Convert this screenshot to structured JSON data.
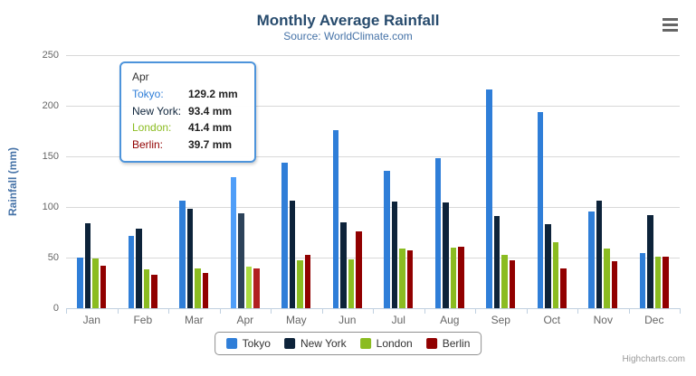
{
  "header": {
    "title": "Monthly Average Rainfall",
    "subtitle": "Source: WorldClimate.com"
  },
  "chart_data": {
    "type": "bar",
    "title": "Monthly Average Rainfall",
    "subtitle": "Source: WorldClimate.com",
    "categories": [
      "Jan",
      "Feb",
      "Mar",
      "Apr",
      "May",
      "Jun",
      "Jul",
      "Aug",
      "Sep",
      "Oct",
      "Nov",
      "Dec"
    ],
    "series": [
      {
        "name": "Tokyo",
        "color": "#2f7ed8",
        "values": [
          49.9,
          71.5,
          106.4,
          129.2,
          144.0,
          176.0,
          135.6,
          148.5,
          216.4,
          194.1,
          95.6,
          54.4
        ]
      },
      {
        "name": "New York",
        "color": "#0d233a",
        "values": [
          83.6,
          78.8,
          98.5,
          93.4,
          106.0,
          84.5,
          105.0,
          104.3,
          91.2,
          83.5,
          106.6,
          92.3
        ]
      },
      {
        "name": "London",
        "color": "#8bbc21",
        "values": [
          48.9,
          38.8,
          39.3,
          41.4,
          47.0,
          48.3,
          59.0,
          59.6,
          52.4,
          65.2,
          59.3,
          51.2
        ]
      },
      {
        "name": "Berlin",
        "color": "#910000",
        "values": [
          42.4,
          33.2,
          34.5,
          39.7,
          52.6,
          75.5,
          57.4,
          60.4,
          47.6,
          39.1,
          46.8,
          51.1
        ]
      }
    ],
    "xlabel": "",
    "ylabel": "Rainfall (mm)",
    "ylim": [
      0,
      250
    ],
    "yticks": [
      0,
      50,
      100,
      150,
      200,
      250
    ],
    "grid": true,
    "legend_position": "bottom",
    "unit": "mm",
    "hovered_category": "Apr"
  },
  "tooltip": {
    "header": "Apr",
    "rows": [
      {
        "label": "Tokyo:",
        "value": "129.2 mm",
        "color": "#2f7ed8"
      },
      {
        "label": "New York:",
        "value": "93.4 mm",
        "color": "#0d233a"
      },
      {
        "label": "London:",
        "value": "41.4 mm",
        "color": "#8bbc21"
      },
      {
        "label": "Berlin:",
        "value": "39.7 mm",
        "color": "#910000"
      }
    ]
  },
  "legend": {
    "items": [
      "Tokyo",
      "New York",
      "London",
      "Berlin"
    ]
  },
  "credits": {
    "label": "Highcharts.com"
  },
  "icons": {
    "context_menu": "hamburger-icon"
  },
  "colors": {
    "title": "#274b6d",
    "subtitle": "#4572a7",
    "axis_title": "#4572a7",
    "tick_label": "#666666",
    "gridline": "#d8d8d8",
    "axis_line": "#c0d0e0",
    "tooltip_border": "#4d94db",
    "legend_border": "#909090",
    "legend_text": "#333333",
    "credits": "#999999",
    "background": "#ffffff"
  }
}
